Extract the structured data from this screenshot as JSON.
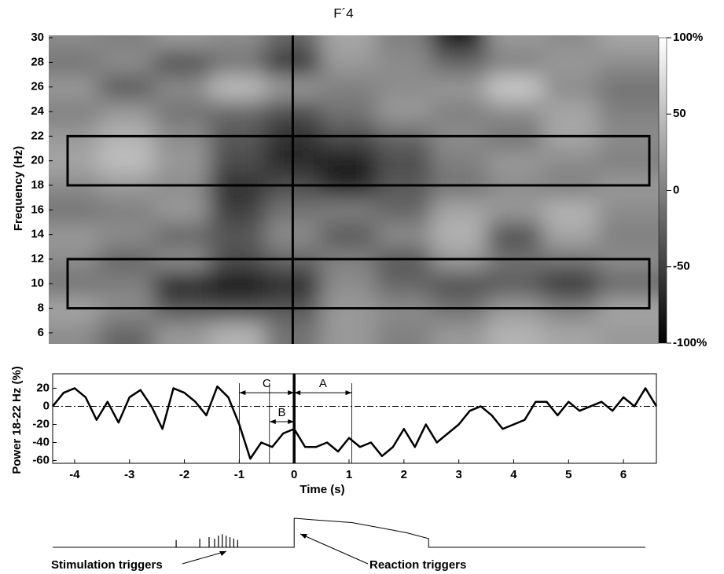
{
  "chart_data": [
    {
      "type": "heatmap",
      "title": "F´4",
      "ylabel": "Frequency (Hz)",
      "xlim": [
        -4.4,
        6.6
      ],
      "ylim": [
        5.1,
        30.2
      ],
      "yticks": [
        6,
        8,
        10,
        12,
        14,
        16,
        18,
        20,
        22,
        24,
        26,
        28,
        30
      ],
      "x": [
        -4,
        -3,
        -2,
        -1,
        0,
        1,
        2,
        3,
        4,
        5,
        6
      ],
      "y": [
        6,
        8,
        10,
        12,
        14,
        16,
        18,
        20,
        22,
        24,
        26,
        28,
        30
      ],
      "z": [
        [
          10,
          -20,
          20,
          40,
          -10,
          20,
          0,
          20,
          40,
          30,
          20
        ],
        [
          30,
          10,
          -30,
          -40,
          -30,
          20,
          10,
          -10,
          20,
          0,
          30
        ],
        [
          -10,
          0,
          -80,
          -90,
          -70,
          10,
          -20,
          -40,
          -30,
          -60,
          -20
        ],
        [
          10,
          -20,
          10,
          -40,
          -20,
          0,
          -30,
          20,
          -10,
          -10,
          10
        ],
        [
          20,
          10,
          -20,
          -30,
          10,
          -30,
          10,
          40,
          -40,
          30,
          0
        ],
        [
          -10,
          0,
          20,
          -50,
          -10,
          0,
          -20,
          30,
          20,
          40,
          10
        ],
        [
          10,
          20,
          10,
          -60,
          -40,
          -70,
          -30,
          -10,
          10,
          0,
          20
        ],
        [
          30,
          50,
          20,
          -40,
          -70,
          -80,
          -40,
          0,
          20,
          10,
          0
        ],
        [
          20,
          40,
          10,
          -30,
          -60,
          -40,
          -20,
          10,
          -10,
          30,
          10
        ],
        [
          0,
          20,
          -10,
          -20,
          -40,
          -10,
          20,
          0,
          10,
          30,
          0
        ],
        [
          20,
          -30,
          10,
          50,
          20,
          0,
          10,
          20,
          60,
          10,
          -10
        ],
        [
          -10,
          10,
          -40,
          -10,
          -60,
          20,
          10,
          -20,
          0,
          20,
          10
        ],
        [
          10,
          0,
          20,
          10,
          -20,
          30,
          0,
          -80,
          20,
          10,
          30
        ]
      ],
      "clim": [
        -100,
        100
      ],
      "cticks": [
        {
          "value": 100,
          "label": "100%"
        },
        50,
        0,
        -50,
        {
          "value": -100,
          "label": "-100%"
        }
      ],
      "boxes": [
        {
          "xlim": [
            -4.06,
            6.43
          ],
          "ylim": [
            18,
            22
          ]
        },
        {
          "xlim": [
            -4.06,
            6.43
          ],
          "ylim": [
            8,
            12
          ]
        }
      ],
      "vline": 0
    },
    {
      "type": "line",
      "ylabel": "Power  18-22 Hz  (%)",
      "xlabel": "Time (s)",
      "xlim": [
        -4.4,
        6.6
      ],
      "ylim": [
        -63,
        36
      ],
      "xticks": [
        -4,
        -3,
        -2,
        -1,
        0,
        1,
        2,
        3,
        4,
        5,
        6
      ],
      "yticks": [
        20,
        0,
        -20,
        -40,
        -60
      ],
      "x": [
        -4.4,
        -4.2,
        -4.0,
        -3.8,
        -3.6,
        -3.4,
        -3.2,
        -3.0,
        -2.8,
        -2.6,
        -2.4,
        -2.2,
        -2.0,
        -1.8,
        -1.6,
        -1.4,
        -1.2,
        -1.0,
        -0.8,
        -0.6,
        -0.4,
        -0.2,
        0.0,
        0.2,
        0.4,
        0.6,
        0.8,
        1.0,
        1.2,
        1.4,
        1.6,
        1.8,
        2.0,
        2.2,
        2.4,
        2.6,
        2.8,
        3.0,
        3.2,
        3.4,
        3.6,
        3.8,
        4.0,
        4.2,
        4.4,
        4.6,
        4.8,
        5.0,
        5.2,
        5.4,
        5.6,
        5.8,
        6.0,
        6.2,
        6.4,
        6.6
      ],
      "values": [
        0,
        15,
        20,
        10,
        -15,
        5,
        -18,
        10,
        18,
        0,
        -25,
        20,
        15,
        5,
        -10,
        22,
        10,
        -20,
        -58,
        -40,
        -45,
        -30,
        -25,
        -45,
        -45,
        -40,
        -50,
        -35,
        -45,
        -40,
        -55,
        -45,
        -25,
        -45,
        -20,
        -40,
        -30,
        -20,
        -5,
        0,
        -10,
        -25,
        -20,
        -15,
        5,
        5,
        -10,
        5,
        -5,
        0,
        5,
        -5,
        10,
        0,
        20,
        0
      ],
      "color": "#000000",
      "hline": 0,
      "vline": 0,
      "intervals": [
        {
          "label": "C",
          "x": [
            -1,
            0
          ],
          "y": 15
        },
        {
          "label": "B",
          "x": [
            -0.45,
            0
          ],
          "y": -17
        },
        {
          "label": "A",
          "x": [
            0,
            1.05
          ],
          "y": 15
        }
      ]
    },
    {
      "type": "trace",
      "xlim": [
        -4.4,
        6.6
      ],
      "ylim": [
        0,
        1
      ],
      "x": [
        -4.4,
        0,
        0,
        0.33,
        1.05,
        1.77,
        2.05,
        2.45,
        2.45,
        6.4
      ],
      "values": [
        0,
        0,
        1,
        0.95,
        0.85,
        0.6,
        0.5,
        0.3,
        0,
        0
      ],
      "spikes": {
        "x": [
          -2.15,
          -1.72,
          -1.55,
          -1.45,
          -1.38,
          -1.31,
          -1.24,
          -1.17,
          -1.1,
          -1.03
        ],
        "values": [
          0.25,
          0.3,
          0.35,
          0.3,
          0.4,
          0.45,
          0.4,
          0.35,
          0.3,
          0.25
        ]
      },
      "annotations": [
        "Stimulation triggers",
        "Reaction triggers"
      ]
    }
  ]
}
